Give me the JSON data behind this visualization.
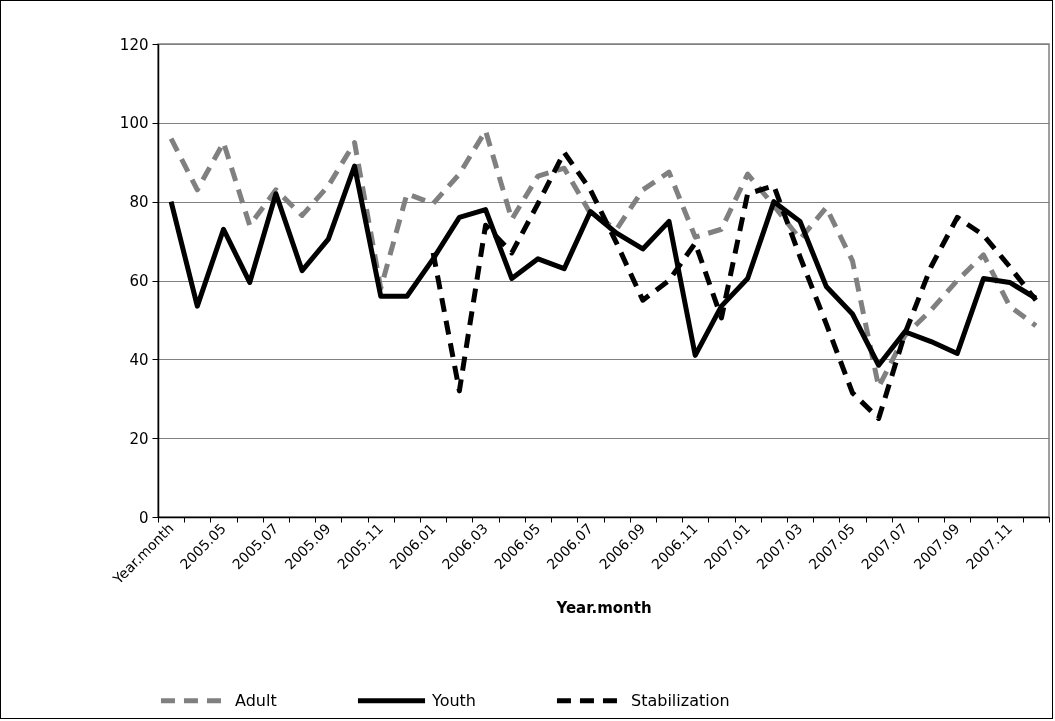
{
  "chart_data": {
    "type": "line",
    "xlabel": "Year.month",
    "categories": [
      "Year.month",
      null,
      "2005.05",
      null,
      "2005.07",
      null,
      "2005.09",
      null,
      "2005.11",
      null,
      "2006.01",
      null,
      "2006.03",
      null,
      "2006.05",
      null,
      "2006.07",
      null,
      "2006.09",
      null,
      "2006.11",
      null,
      "2007.01",
      null,
      "2007.03",
      null,
      "2007.05",
      null,
      "2007.07",
      null,
      "2007.09",
      null,
      "2007.11",
      null
    ],
    "series": [
      {
        "name": "Adult",
        "color": "#808080",
        "line_style": "dashed",
        "values": [
          96,
          83,
          95,
          74,
          83,
          76.5,
          84,
          95,
          58,
          82,
          79.5,
          87,
          98,
          75.5,
          86.5,
          88.5,
          77,
          73,
          83,
          87.5,
          71,
          73,
          87,
          79,
          70.5,
          78.5,
          65,
          33,
          46,
          52.5,
          60,
          66.5,
          53.5,
          48.5
        ]
      },
      {
        "name": "Youth",
        "color": "#000000",
        "line_style": "solid",
        "values": [
          80,
          53.5,
          73,
          59.5,
          82,
          62.5,
          70.5,
          89,
          56,
          56,
          65.5,
          76,
          78,
          60.5,
          65.5,
          63,
          77.5,
          72,
          68,
          75,
          41,
          53.5,
          60.5,
          80,
          75,
          58.5,
          51.5,
          38.5,
          47,
          44.5,
          41.5,
          60.5,
          59.5,
          55.5
        ]
      },
      {
        "name": "Stabilization",
        "color": "#000000",
        "line_style": "dashed",
        "values": [
          null,
          null,
          null,
          null,
          null,
          null,
          null,
          null,
          null,
          null,
          67,
          32,
          74,
          67,
          79.5,
          92.5,
          83,
          69.5,
          55,
          60,
          69.5,
          50.5,
          82,
          84,
          66,
          49,
          31.5,
          25,
          46.5,
          63.5,
          76,
          71.5,
          63.5,
          55
        ]
      }
    ],
    "ylim": [
      0,
      120
    ],
    "yticks": [
      0,
      20,
      40,
      60,
      80,
      100,
      120
    ],
    "grid": "y",
    "legend": "bottom"
  }
}
